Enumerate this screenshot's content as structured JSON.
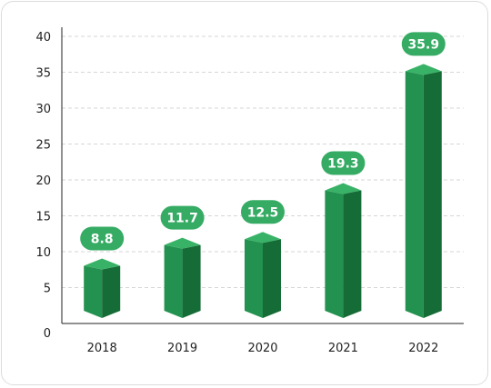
{
  "chart_data": {
    "type": "bar",
    "categories": [
      "2018",
      "2019",
      "2020",
      "2021",
      "2022"
    ],
    "values": [
      8.8,
      11.7,
      12.5,
      19.3,
      35.9
    ],
    "data_labels": [
      "8.8",
      "11.7",
      "12.5",
      "19.3",
      "35.9"
    ],
    "yticks": [
      "0",
      "5",
      "10",
      "15",
      "20",
      "25",
      "30",
      "35",
      "40"
    ],
    "ylim": [
      0,
      40
    ],
    "grid": true,
    "style": "3d-column",
    "colors": {
      "bar_front": "#23914f",
      "bar_side": "#156c36",
      "bar_top": "#38b266",
      "label_bg": "#36ab64",
      "grid": "#d6d6d6",
      "axis": "#222222"
    }
  }
}
